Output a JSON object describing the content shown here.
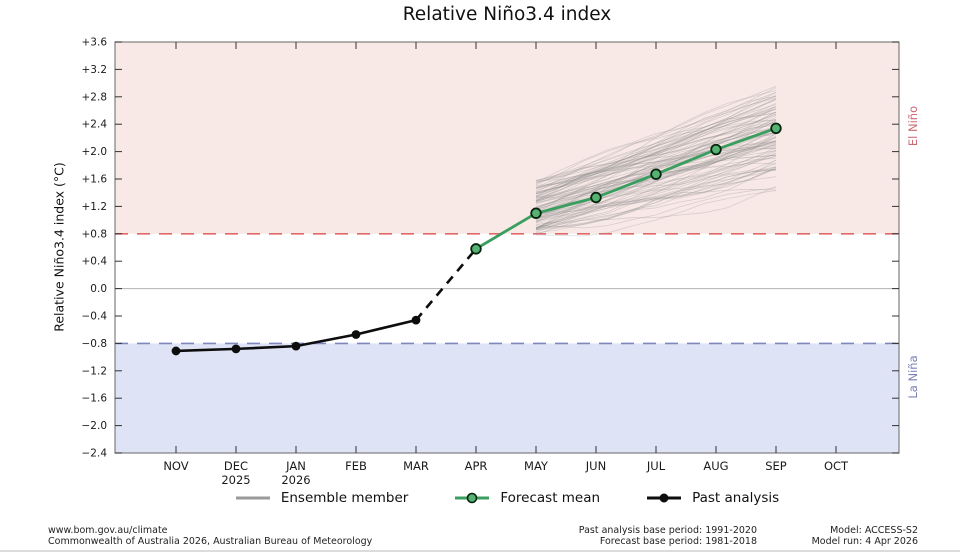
{
  "page": {
    "title": "Relative Niño3.4 index"
  },
  "chart_data": {
    "type": "line",
    "title": "Relative Niño3.4 index",
    "ylabel": "Relative Niño3.4 index (°C)",
    "xlabel": "",
    "ylim": [
      -2.4,
      3.6
    ],
    "ytick_step": 0.4,
    "grid": "off",
    "zero_line": 0.0,
    "categories": [
      "NOV",
      "DEC",
      "JAN",
      "FEB",
      "MAR",
      "APR",
      "MAY",
      "JUN",
      "JUL",
      "AUG",
      "SEP",
      "OCT"
    ],
    "x_sublabels": [
      "",
      "2025",
      "2026",
      "",
      "",
      "",
      "",
      "",
      "",
      "",
      "",
      ""
    ],
    "regions": [
      {
        "name": "El Niño",
        "from": 0.8,
        "to": 3.6,
        "fill": "#f8e9e7",
        "threshold": 0.8,
        "threshold_color": "#e26868",
        "label_color": "#c96a74"
      },
      {
        "name": "La Niña",
        "from": -2.4,
        "to": -0.8,
        "fill": "#dee3f6",
        "threshold": -0.8,
        "threshold_color": "#7e86bd",
        "label_color": "#7a80b5"
      }
    ],
    "series": [
      {
        "name": "Past analysis",
        "color": "#0d0d0d",
        "width": 2.6,
        "marker": "filled",
        "x": [
          0,
          1,
          2,
          3,
          4
        ],
        "values": [
          -0.91,
          -0.88,
          -0.84,
          -0.67,
          -0.46
        ]
      },
      {
        "name": "Analysis-to-forecast transition",
        "color": "#0d0d0d",
        "width": 2.6,
        "marker": "none",
        "dash": [
          9,
          7
        ],
        "x": [
          4,
          5
        ],
        "values": [
          -0.46,
          0.58
        ]
      },
      {
        "name": "Forecast mean",
        "color": "#3a9e5f",
        "width": 2.8,
        "marker": "open",
        "marker_face": "#56b273",
        "marker_edge": "#07240f",
        "x": [
          5,
          6,
          7,
          8,
          9,
          10
        ],
        "values": [
          0.58,
          1.1,
          1.33,
          1.67,
          2.03,
          2.34
        ]
      }
    ],
    "ensemble": {
      "name": "Ensemble member",
      "color": "#8f8f8f",
      "opacity": 0.3,
      "line_width": 0.8,
      "count": 96,
      "x": [
        "MAY",
        "SEP"
      ],
      "range_start": [
        0.78,
        1.58
      ],
      "range_end": [
        1.45,
        3.12
      ]
    },
    "legend": [
      {
        "label": "Ensemble member",
        "swatch": "gray-line"
      },
      {
        "label": "Forecast mean",
        "swatch": "green-line-open-circle"
      },
      {
        "label": "Past analysis",
        "swatch": "black-line-filled-circle"
      }
    ]
  },
  "footer": {
    "left_line1": "www.bom.gov.au/climate",
    "left_line2": "Commonwealth of Australia 2026, Australian Bureau of Meteorology",
    "mid_line1": "Past analysis base period: 1991-2020",
    "mid_line2": "Forecast base period: 1981-2018",
    "right_line1": "Model: ACCESS-S2",
    "right_line2": "Model run: 4 Apr 2026"
  }
}
